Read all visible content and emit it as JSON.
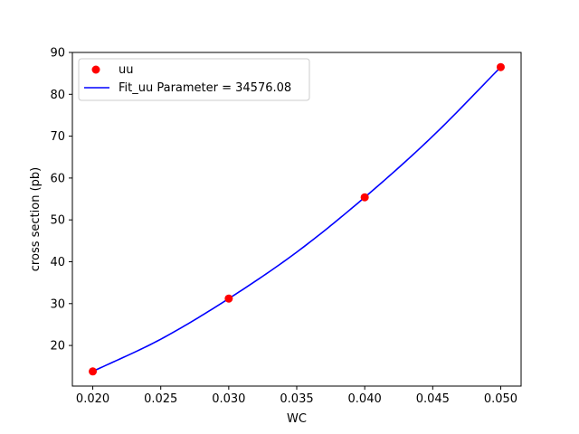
{
  "chart_data": {
    "type": "scatter",
    "xlabel": "WC",
    "ylabel": "cross section (pb)",
    "xlim": [
      0.0185,
      0.0515
    ],
    "ylim": [
      10.3,
      90
    ],
    "x_ticks": [
      0.02,
      0.025,
      0.03,
      0.035,
      0.04,
      0.045,
      0.05
    ],
    "x_tick_labels": [
      "0.020",
      "0.025",
      "0.030",
      "0.035",
      "0.040",
      "0.045",
      "0.050"
    ],
    "y_ticks": [
      20,
      30,
      40,
      50,
      60,
      70,
      80,
      90
    ],
    "y_tick_labels": [
      "20",
      "30",
      "40",
      "50",
      "60",
      "70",
      "80",
      "90"
    ],
    "grid": false,
    "legend": "top-left",
    "series": [
      {
        "name": "uu",
        "kind": "scatter",
        "color": "#ff0000",
        "x": [
          0.02,
          0.03,
          0.04,
          0.05
        ],
        "y": [
          13.8,
          31.2,
          55.4,
          86.5
        ]
      },
      {
        "name": "Fit_uu Parameter = 34576.08",
        "kind": "line",
        "color": "#0000ff",
        "x": [
          0.02,
          0.025,
          0.03,
          0.035,
          0.04,
          0.045,
          0.05
        ],
        "y": [
          13.8,
          21.5,
          31.2,
          42.3,
          55.4,
          70.0,
          86.5
        ]
      }
    ]
  }
}
